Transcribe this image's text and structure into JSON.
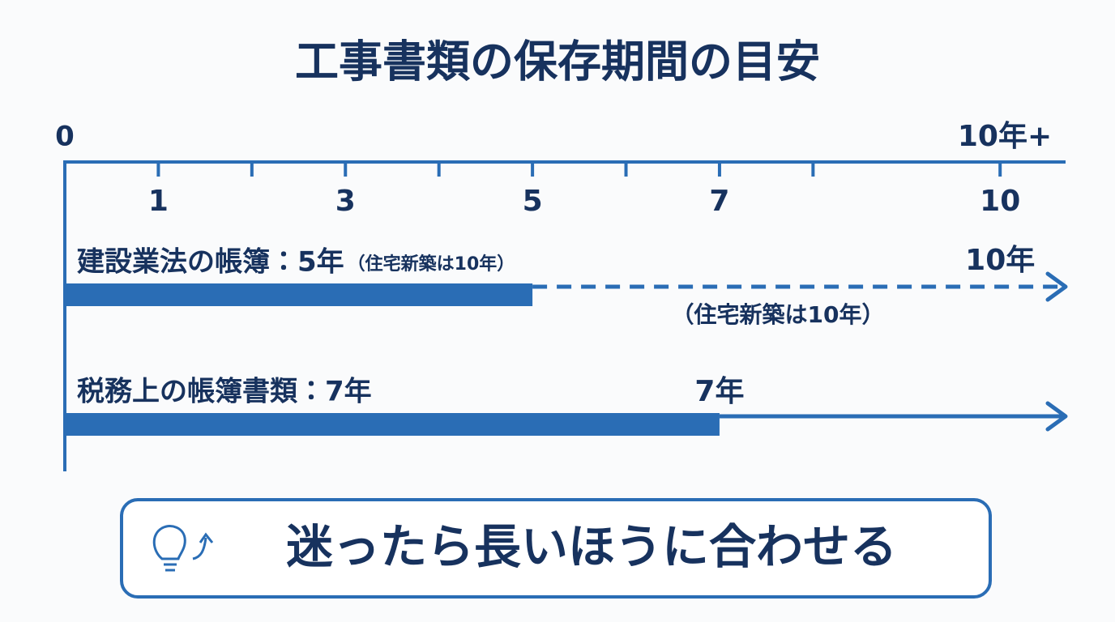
{
  "title": "工事書類の保存期間の目安",
  "axis": {
    "xlim": [
      0,
      10.7
    ],
    "xticks": [
      1,
      3,
      5,
      7,
      10
    ],
    "minor_xticks": [
      2,
      4,
      6,
      8
    ],
    "end_label": "10年+",
    "color": "#2a6db5"
  },
  "rows": [
    {
      "label": "建設業法の帳簿：5年",
      "note": "（住宅新築は10年）",
      "value": 5,
      "extended_value": 10,
      "end_label": "10年",
      "below_note": "（住宅新築は10年）",
      "line": "dashed"
    },
    {
      "label": "税務上の帳簿書類：7年",
      "value": 7,
      "end_label": "7年",
      "line": "solid"
    }
  ],
  "footer": {
    "text": "迷ったら長いほうに合わせる"
  }
}
